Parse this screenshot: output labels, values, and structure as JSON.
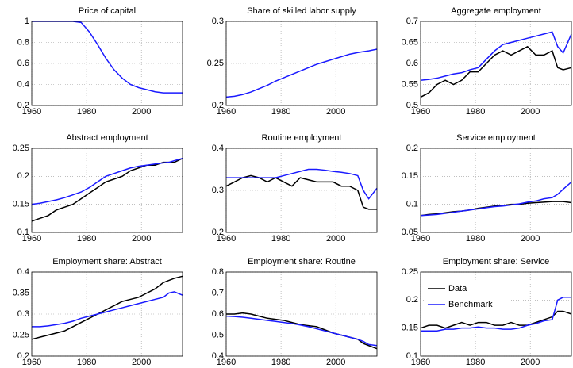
{
  "chart_data": [
    {
      "type": "line",
      "title": "Price of capital",
      "x": [
        1960,
        1963,
        1966,
        1969,
        1972,
        1975,
        1978,
        1981,
        1984,
        1987,
        1990,
        1993,
        1996,
        1999,
        2002,
        2005,
        2008,
        2010,
        2012,
        2015
      ],
      "series": [
        {
          "color": "#1a1aff",
          "values": [
            1,
            1,
            1,
            1,
            1,
            1,
            0.99,
            0.9,
            0.78,
            0.65,
            0.54,
            0.46,
            0.4,
            0.37,
            0.35,
            0.33,
            0.32,
            0.32,
            0.32,
            0.32
          ]
        }
      ],
      "xlim": [
        1960,
        2015
      ],
      "xticks": [
        1960,
        1980,
        2000
      ],
      "ylim": [
        0.2,
        1
      ],
      "yticks": [
        0.2,
        0.4,
        0.6,
        0.8,
        1
      ],
      "grid": true
    },
    {
      "type": "line",
      "title": "Share of skilled labor supply",
      "x": [
        1960,
        1963,
        1966,
        1969,
        1972,
        1975,
        1978,
        1981,
        1984,
        1987,
        1990,
        1993,
        1996,
        1999,
        2002,
        2005,
        2008,
        2010,
        2012,
        2015
      ],
      "series": [
        {
          "color": "#1a1aff",
          "values": [
            0.21,
            0.211,
            0.213,
            0.216,
            0.22,
            0.224,
            0.229,
            0.233,
            0.237,
            0.241,
            0.245,
            0.249,
            0.252,
            0.255,
            0.258,
            0.261,
            0.263,
            0.264,
            0.265,
            0.267
          ]
        }
      ],
      "xlim": [
        1960,
        2015
      ],
      "xticks": [
        1960,
        1980,
        2000
      ],
      "ylim": [
        0.2,
        0.3
      ],
      "yticks": [
        0.2,
        0.25,
        0.3
      ],
      "grid": true
    },
    {
      "type": "line",
      "title": "Aggregate employment",
      "x": [
        1960,
        1963,
        1966,
        1969,
        1972,
        1975,
        1978,
        1981,
        1984,
        1987,
        1990,
        1993,
        1996,
        1999,
        2002,
        2005,
        2008,
        2010,
        2012,
        2015
      ],
      "series": [
        {
          "color": "#000000",
          "values": [
            0.52,
            0.53,
            0.55,
            0.56,
            0.55,
            0.56,
            0.58,
            0.58,
            0.6,
            0.62,
            0.63,
            0.62,
            0.63,
            0.64,
            0.62,
            0.62,
            0.63,
            0.59,
            0.585,
            0.59
          ]
        },
        {
          "color": "#1a1aff",
          "values": [
            0.56,
            0.562,
            0.565,
            0.57,
            0.575,
            0.578,
            0.585,
            0.59,
            0.61,
            0.63,
            0.645,
            0.65,
            0.655,
            0.66,
            0.665,
            0.67,
            0.675,
            0.64,
            0.625,
            0.67
          ]
        }
      ],
      "xlim": [
        1960,
        2015
      ],
      "xticks": [
        1960,
        1980,
        2000
      ],
      "ylim": [
        0.5,
        0.7
      ],
      "yticks": [
        0.5,
        0.55,
        0.6,
        0.65,
        0.7
      ],
      "grid": true
    },
    {
      "type": "line",
      "title": "Abstract employment",
      "x": [
        1960,
        1963,
        1966,
        1969,
        1972,
        1975,
        1978,
        1981,
        1984,
        1987,
        1990,
        1993,
        1996,
        1999,
        2002,
        2005,
        2008,
        2010,
        2012,
        2015
      ],
      "series": [
        {
          "color": "#000000",
          "values": [
            0.12,
            0.125,
            0.13,
            0.14,
            0.145,
            0.15,
            0.16,
            0.17,
            0.18,
            0.19,
            0.195,
            0.2,
            0.21,
            0.215,
            0.22,
            0.22,
            0.225,
            0.225,
            0.225,
            0.232
          ]
        },
        {
          "color": "#1a1aff",
          "values": [
            0.15,
            0.152,
            0.155,
            0.158,
            0.162,
            0.167,
            0.172,
            0.18,
            0.19,
            0.2,
            0.205,
            0.21,
            0.215,
            0.218,
            0.22,
            0.222,
            0.224,
            0.225,
            0.228,
            0.232
          ]
        }
      ],
      "xlim": [
        1960,
        2015
      ],
      "xticks": [
        1960,
        1980,
        2000
      ],
      "ylim": [
        0.1,
        0.25
      ],
      "yticks": [
        0.1,
        0.15,
        0.2,
        0.25
      ],
      "grid": true
    },
    {
      "type": "line",
      "title": "Routine employment",
      "x": [
        1960,
        1963,
        1966,
        1969,
        1972,
        1975,
        1978,
        1981,
        1984,
        1987,
        1990,
        1993,
        1996,
        1999,
        2002,
        2005,
        2008,
        2010,
        2012,
        2015
      ],
      "series": [
        {
          "color": "#000000",
          "values": [
            0.31,
            0.32,
            0.33,
            0.335,
            0.33,
            0.32,
            0.33,
            0.32,
            0.31,
            0.33,
            0.325,
            0.32,
            0.32,
            0.32,
            0.31,
            0.31,
            0.3,
            0.26,
            0.255,
            0.255
          ]
        },
        {
          "color": "#1a1aff",
          "values": [
            0.33,
            0.33,
            0.33,
            0.33,
            0.33,
            0.33,
            0.33,
            0.335,
            0.34,
            0.345,
            0.35,
            0.35,
            0.348,
            0.345,
            0.343,
            0.34,
            0.335,
            0.3,
            0.28,
            0.305
          ]
        }
      ],
      "xlim": [
        1960,
        2015
      ],
      "xticks": [
        1960,
        1980,
        2000
      ],
      "ylim": [
        0.2,
        0.4
      ],
      "yticks": [
        0.2,
        0.3,
        0.4
      ],
      "grid": true
    },
    {
      "type": "line",
      "title": "Service employment",
      "x": [
        1960,
        1963,
        1966,
        1969,
        1972,
        1975,
        1978,
        1981,
        1984,
        1987,
        1990,
        1993,
        1996,
        1999,
        2002,
        2005,
        2008,
        2010,
        2012,
        2015
      ],
      "series": [
        {
          "color": "#000000",
          "values": [
            0.08,
            0.082,
            0.083,
            0.085,
            0.087,
            0.088,
            0.09,
            0.093,
            0.095,
            0.097,
            0.098,
            0.1,
            0.1,
            0.102,
            0.103,
            0.104,
            0.105,
            0.105,
            0.105,
            0.103
          ]
        },
        {
          "color": "#1a1aff",
          "values": [
            0.08,
            0.081,
            0.082,
            0.084,
            0.086,
            0.088,
            0.09,
            0.092,
            0.094,
            0.096,
            0.097,
            0.099,
            0.101,
            0.104,
            0.106,
            0.11,
            0.112,
            0.118,
            0.127,
            0.14
          ]
        }
      ],
      "xlim": [
        1960,
        2015
      ],
      "xticks": [
        1960,
        1980,
        2000
      ],
      "ylim": [
        0.05,
        0.2
      ],
      "yticks": [
        0.05,
        0.1,
        0.15,
        0.2
      ],
      "grid": true
    },
    {
      "type": "line",
      "title": "Employment share: Abstract",
      "x": [
        1960,
        1963,
        1966,
        1969,
        1972,
        1975,
        1978,
        1981,
        1984,
        1987,
        1990,
        1993,
        1996,
        1999,
        2002,
        2005,
        2008,
        2010,
        2012,
        2015
      ],
      "series": [
        {
          "color": "#000000",
          "values": [
            0.24,
            0.245,
            0.25,
            0.255,
            0.26,
            0.27,
            0.28,
            0.29,
            0.3,
            0.31,
            0.32,
            0.33,
            0.335,
            0.34,
            0.35,
            0.36,
            0.375,
            0.38,
            0.385,
            0.39
          ]
        },
        {
          "color": "#1a1aff",
          "values": [
            0.27,
            0.27,
            0.272,
            0.275,
            0.278,
            0.283,
            0.29,
            0.295,
            0.3,
            0.305,
            0.31,
            0.315,
            0.32,
            0.325,
            0.33,
            0.335,
            0.34,
            0.35,
            0.353,
            0.345
          ]
        }
      ],
      "xlim": [
        1960,
        2015
      ],
      "xticks": [
        1960,
        1980,
        2000
      ],
      "ylim": [
        0.2,
        0.4
      ],
      "yticks": [
        0.2,
        0.25,
        0.3,
        0.35,
        0.4
      ],
      "grid": true
    },
    {
      "type": "line",
      "title": "Employment share: Routine",
      "x": [
        1960,
        1963,
        1966,
        1969,
        1972,
        1975,
        1978,
        1981,
        1984,
        1987,
        1990,
        1993,
        1996,
        1999,
        2002,
        2005,
        2008,
        2010,
        2012,
        2015
      ],
      "series": [
        {
          "color": "#000000",
          "values": [
            0.6,
            0.6,
            0.605,
            0.6,
            0.59,
            0.58,
            0.575,
            0.57,
            0.56,
            0.55,
            0.545,
            0.54,
            0.525,
            0.51,
            0.5,
            0.49,
            0.48,
            0.46,
            0.45,
            0.435
          ]
        },
        {
          "color": "#1a1aff",
          "values": [
            0.59,
            0.588,
            0.585,
            0.58,
            0.575,
            0.57,
            0.565,
            0.56,
            0.555,
            0.548,
            0.54,
            0.53,
            0.52,
            0.51,
            0.5,
            0.49,
            0.48,
            0.47,
            0.455,
            0.45
          ]
        }
      ],
      "xlim": [
        1960,
        2015
      ],
      "xticks": [
        1960,
        1980,
        2000
      ],
      "ylim": [
        0.4,
        0.8
      ],
      "yticks": [
        0.4,
        0.5,
        0.6,
        0.7,
        0.8
      ],
      "grid": true
    },
    {
      "type": "line",
      "title": "Employment share: Service",
      "x": [
        1960,
        1963,
        1966,
        1969,
        1972,
        1975,
        1978,
        1981,
        1984,
        1987,
        1990,
        1993,
        1996,
        1999,
        2002,
        2005,
        2008,
        2010,
        2012,
        2015
      ],
      "series": [
        {
          "name": "Data",
          "color": "#000000",
          "values": [
            0.15,
            0.155,
            0.155,
            0.15,
            0.155,
            0.16,
            0.155,
            0.16,
            0.16,
            0.155,
            0.155,
            0.16,
            0.155,
            0.155,
            0.16,
            0.165,
            0.17,
            0.18,
            0.18,
            0.175
          ]
        },
        {
          "name": "Benchmark",
          "color": "#1a1aff",
          "values": [
            0.145,
            0.145,
            0.145,
            0.148,
            0.148,
            0.15,
            0.15,
            0.152,
            0.15,
            0.15,
            0.148,
            0.148,
            0.15,
            0.155,
            0.158,
            0.163,
            0.165,
            0.2,
            0.205,
            0.205
          ]
        }
      ],
      "xlim": [
        1960,
        2015
      ],
      "xticks": [
        1960,
        1980,
        2000
      ],
      "ylim": [
        0.1,
        0.25
      ],
      "yticks": [
        0.1,
        0.15,
        0.2,
        0.25
      ],
      "grid": true,
      "legend": "upper left"
    }
  ]
}
